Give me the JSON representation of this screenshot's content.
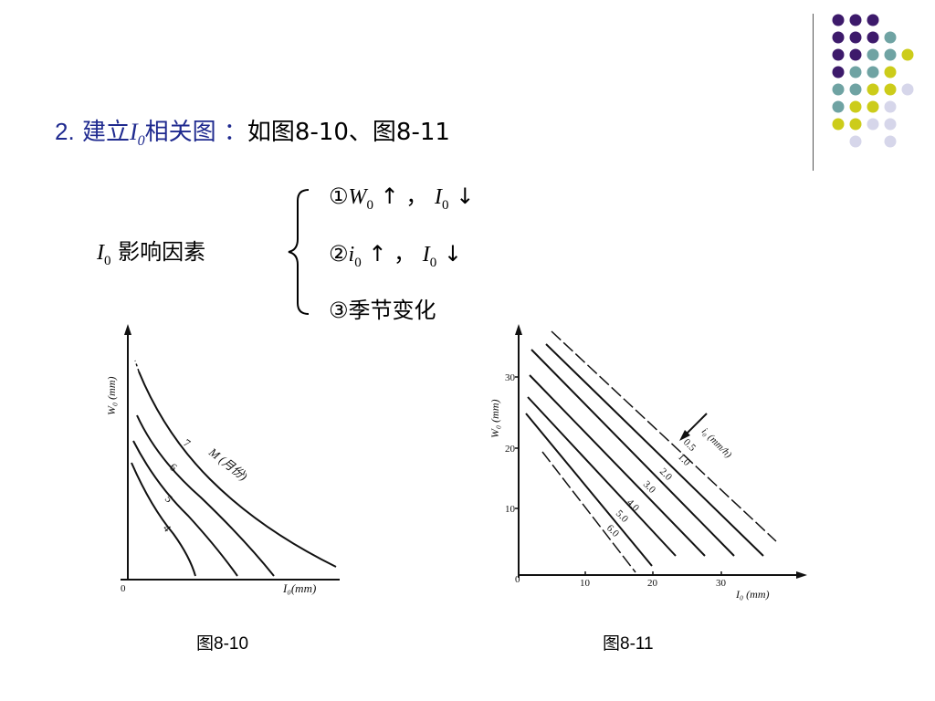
{
  "title": {
    "number": "2.",
    "prefix": "建立",
    "var": "I",
    "var_sub": "0",
    "suffix": "相关图 ：",
    "ref": "如图8-10、图8-11"
  },
  "factors": {
    "label_var": "I",
    "label_sub": "0",
    "label_text": " 影响因素",
    "items": [
      {
        "mark": "①",
        "v1": "W",
        "v1_sub": "0",
        "arrow1": "↑",
        "sep": "，",
        "v2": "I",
        "v2_sub": "0",
        "arrow2": "↓"
      },
      {
        "mark": "②",
        "v1": "i",
        "v1_sub": "0",
        "arrow1": "↑",
        "sep": "，",
        "v2": "I",
        "v2_sub": "0",
        "arrow2": "↓"
      },
      {
        "mark": "③",
        "text": "季节变化"
      }
    ]
  },
  "fig10": {
    "caption": "图8-10",
    "y_axis_label": "W₀ (mm)",
    "x_axis_label": "I₀(mm)",
    "origin": "0",
    "curve_labels": [
      "7",
      "6",
      "5",
      "4"
    ],
    "param_label": "M (月份)"
  },
  "fig11": {
    "caption": "图8-11",
    "y_axis_label": "W₀ (mm)",
    "x_axis_label": "I₀ (mm)",
    "origin": "0",
    "x_ticks": [
      "10",
      "20",
      "30"
    ],
    "y_ticks": [
      "10",
      "20",
      "30"
    ],
    "line_labels": [
      "0.5",
      "1.0",
      "2.0",
      "3.0",
      "4.0",
      "5.0",
      "6.0"
    ],
    "param_label": "i₀ (mm/h)"
  },
  "decor": {
    "dot_colors": {
      "purple": "#3d1a6b",
      "teal": "#6fa3a3",
      "yellow": "#cccc1a",
      "lavender": "#d6d6ea"
    }
  }
}
